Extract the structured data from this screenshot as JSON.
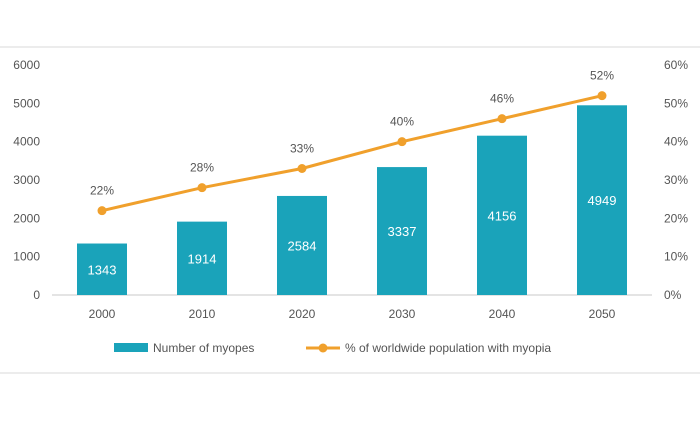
{
  "chart_data": {
    "type": "bar+line",
    "categories": [
      "2000",
      "2010",
      "2020",
      "2030",
      "2040",
      "2050"
    ],
    "series": [
      {
        "name": "Number of myopes",
        "type": "bar",
        "axis": "left",
        "color": "#1aa3ba",
        "values": [
          1343,
          1914,
          2584,
          3337,
          4156,
          4949
        ],
        "labels": [
          "1343",
          "1914",
          "2584",
          "3337",
          "4156",
          "4949"
        ]
      },
      {
        "name": "% of worldwide population with myopia",
        "type": "line",
        "axis": "right",
        "color": "#f0a02c",
        "values": [
          22,
          28,
          33,
          40,
          46,
          52
        ],
        "labels": [
          "22%",
          "28%",
          "33%",
          "40%",
          "46%",
          "52%"
        ]
      }
    ],
    "y_left": {
      "range": [
        0,
        6000
      ],
      "ticks": [
        "0",
        "1000",
        "2000",
        "3000",
        "4000",
        "5000",
        "6000"
      ]
    },
    "y_right": {
      "range": [
        0,
        60
      ],
      "ticks": [
        "0%",
        "10%",
        "20%",
        "30%",
        "40%",
        "50%",
        "60%"
      ]
    },
    "grid": false,
    "legend_position": "bottom"
  }
}
